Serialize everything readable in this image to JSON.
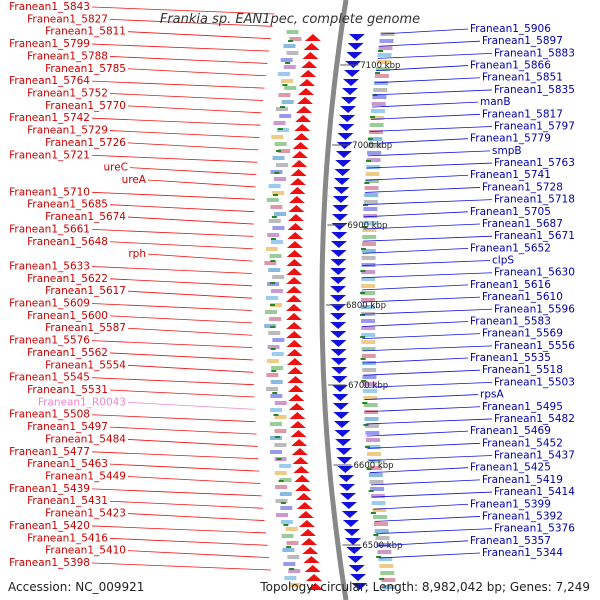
{
  "title": "Frankia sp. EAN1pec, complete genome",
  "footer": {
    "accession": "Accession: NC_009921",
    "topology": "Topology: circular; Length: 8,982,042 bp; Genes: 7,249"
  },
  "kbp_labels": [
    "7100 kbp",
    "7000 kbp",
    "6900 kbp",
    "6800 kbp",
    "6700 kbp",
    "6600 kbp",
    "6500 kbp"
  ],
  "left_labels": [
    "Franean1_5843",
    "Franean1_5827",
    "Franean1_5811",
    "Franean1_5799",
    "Franean1_5788",
    "Franean1_5785",
    "Franean1_5764",
    "Franean1_5752",
    "Franean1_5770",
    "Franean1_5742",
    "Franean1_5729",
    "Franean1_5726",
    "Franean1_5721",
    "ureC",
    "ureA",
    "Franean1_5710",
    "Franean1_5685",
    "Franean1_5674",
    "Franean1_5661",
    "Franean1_5648",
    "rph",
    "Franean1_5633",
    "Franean1_5622",
    "Franean1_5617",
    "Franean1_5609",
    "Franean1_5600",
    "Franean1_5587",
    "Franean1_5576",
    "Franean1_5562",
    "Franean1_5554",
    "Franean1_5545",
    "Franean1_5531",
    "Franean1_R0043",
    "Franean1_5508",
    "Franean1_5497",
    "Franean1_5484",
    "Franean1_5477",
    "Franean1_5463",
    "Franean1_5449",
    "Franean1_5439",
    "Franean1_5431",
    "Franean1_5423",
    "Franean1_5420",
    "Franean1_5416",
    "Franean1_5410",
    "Franean1_5398"
  ],
  "right_labels": [
    "Franean1_5906",
    "Franean1_5897",
    "Franean1_5883",
    "Franean1_5866",
    "Franean1_5851",
    "Franean1_5835",
    "manB",
    "Franean1_5817",
    "Franean1_5797",
    "Franean1_5779",
    "smpB",
    "Franean1_5763",
    "Franean1_5741",
    "Franean1_5728",
    "Franean1_5718",
    "Franean1_5705",
    "Franean1_5687",
    "Franean1_5671",
    "Franean1_5652",
    "clpS",
    "Franean1_5630",
    "Franean1_5616",
    "Franean1_5610",
    "Franean1_5596",
    "Franean1_5583",
    "Franean1_5569",
    "Franean1_5556",
    "Franean1_5535",
    "Franean1_5518",
    "Franean1_5503",
    "rpsA",
    "Franean1_5495",
    "Franean1_5482",
    "Franean1_5469",
    "Franean1_5452",
    "Franean1_5437",
    "Franean1_5425",
    "Franean1_5419",
    "Franean1_5414",
    "Franean1_5399",
    "Franean1_5392",
    "Franean1_5376",
    "Franean1_5357",
    "Franean1_5344"
  ],
  "colors": {
    "forward_strand": "#ee1111",
    "reverse_strand": "#1111dd",
    "backbone": "#888888",
    "left_label": "#cc0000",
    "right_label": "#0000aa",
    "rna_label": "#ee88cc",
    "tick_marker": "#228822"
  }
}
